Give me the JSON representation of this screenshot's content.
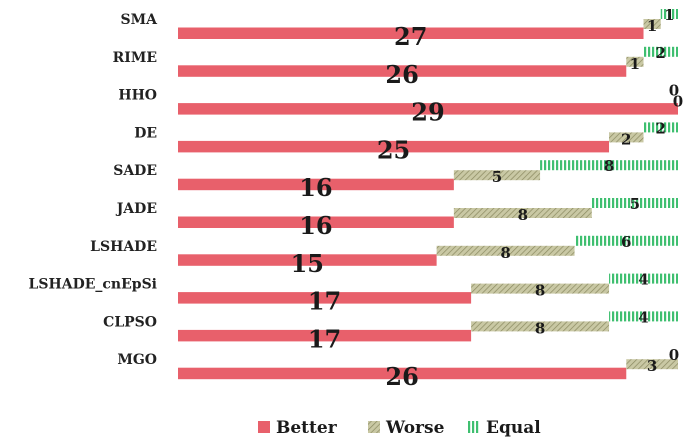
{
  "chart_data": {
    "type": "bar",
    "stacked": true,
    "orientation": "horizontal",
    "categories": [
      "SMA",
      "RIME",
      "HHO",
      "DE",
      "SADE",
      "JADE",
      "LSHADE",
      "LSHADE_cnEpSi",
      "CLPSO",
      "MGO"
    ],
    "series": [
      {
        "name": "Better",
        "color": "#e8606b",
        "values": [
          27,
          26,
          29,
          25,
          16,
          16,
          15,
          17,
          17,
          26
        ]
      },
      {
        "name": "Worse",
        "color": "#b5b48e",
        "values": [
          1,
          1,
          0,
          2,
          5,
          8,
          8,
          8,
          8,
          3
        ]
      },
      {
        "name": "Equal",
        "color": "#4cc47a",
        "values": [
          1,
          2,
          0,
          2,
          8,
          5,
          6,
          4,
          4,
          0
        ]
      }
    ],
    "legend": {
      "position": "bottom",
      "items": [
        "Better",
        "Worse",
        "Equal"
      ]
    }
  }
}
